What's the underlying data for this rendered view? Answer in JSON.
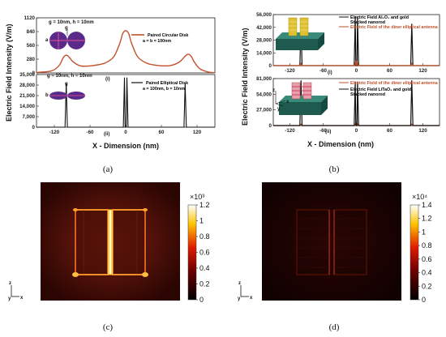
{
  "captions": {
    "a": "(a)",
    "b": "(b)",
    "c": "(c)",
    "d": "(d)"
  },
  "colors": {
    "circular": "#c0502a",
    "elliptical": "#111111",
    "al2o3": "#111111",
    "diner": "#c0502a",
    "litao3": "#111111"
  },
  "chart_data": [
    {
      "type": "line",
      "panel": "a-top",
      "xlabel": "X - Dimension (nm)",
      "ylabel": "Electric Field Intensity (V/m)",
      "xlim": [
        -150,
        150
      ],
      "ylim": [
        0,
        1120
      ],
      "y_ticks": [
        "0",
        "280",
        "560",
        "840",
        "1120"
      ],
      "annotation": "g = 10nm, h = 10nm",
      "series": [
        {
          "name": "Paired Circular Disk\na = b = 100nm",
          "x": [
            -150,
            -125,
            -112,
            -105,
            -100,
            -95,
            -88,
            -75,
            -55,
            -35,
            -20,
            -10,
            -5,
            0,
            5,
            10,
            20,
            35,
            55,
            75,
            90,
            100,
            105,
            110,
            115,
            125,
            140,
            150
          ],
          "values": [
            10,
            40,
            150,
            310,
            360,
            320,
            220,
            140,
            150,
            200,
            330,
            600,
            800,
            860,
            800,
            600,
            330,
            200,
            150,
            150,
            220,
            340,
            380,
            340,
            230,
            80,
            15,
            5
          ]
        }
      ]
    },
    {
      "type": "line",
      "panel": "a-bottom",
      "xlabel": "X - Dimension (nm)",
      "xlim": [
        -150,
        150
      ],
      "ylim": [
        0,
        35000
      ],
      "x_ticks": [
        "-120",
        "-60",
        "0",
        "60",
        "120"
      ],
      "y_ticks": [
        "0",
        "7,000",
        "14,000",
        "21,000",
        "28,000",
        "35,000"
      ],
      "annotation": "g = 10nm, h = 10nm",
      "markers": [
        "(i)",
        "(ii)"
      ],
      "series": [
        {
          "name": "Paired Elliptical Disk\na = 100nm, b = 10nm",
          "x": [
            -150,
            -102,
            -100,
            -98,
            -4,
            -2,
            -1,
            0,
            1,
            2,
            4,
            98,
            100,
            102,
            150
          ],
          "values": [
            0,
            0,
            29000,
            0,
            0,
            33000,
            0,
            0,
            0,
            33000,
            0,
            0,
            29000,
            0,
            0
          ]
        }
      ]
    },
    {
      "type": "line",
      "panel": "b-top",
      "xlabel": "X - Dimension (nm)",
      "ylabel": "Electric Field Intensity (V/m)",
      "xlim": [
        -150,
        150
      ],
      "ylim": [
        0,
        56000
      ],
      "y_ticks": [
        "0",
        "14,000",
        "28,000",
        "42,000",
        "56,000"
      ],
      "marker": "(i)",
      "series": [
        {
          "name": "Electric Field Al₂O₃ and gold Stacked nanorod",
          "x": [
            -150,
            -102,
            -100,
            -98,
            -4,
            -2,
            -1,
            0,
            1,
            2,
            4,
            98,
            100,
            102,
            150
          ],
          "values": [
            0,
            0,
            46000,
            0,
            0,
            54000,
            0,
            0,
            0,
            54000,
            0,
            0,
            46000,
            0,
            0
          ]
        },
        {
          "name": "Electric Field of the diner elliptical antenna",
          "x": [
            -150,
            -102,
            -100,
            -98,
            -3,
            -1,
            0,
            1,
            3,
            98,
            100,
            102,
            150
          ],
          "values": [
            0,
            0,
            2500,
            0,
            0,
            5200,
            0,
            5200,
            0,
            0,
            2500,
            0,
            0
          ]
        }
      ]
    },
    {
      "type": "line",
      "panel": "b-bottom",
      "xlabel": "X - Dimension (nm)",
      "xlim": [
        -150,
        150
      ],
      "ylim": [
        0,
        81000
      ],
      "x_ticks": [
        "-120",
        "-60",
        "0",
        "60",
        "120"
      ],
      "y_ticks": [
        "0",
        "27,000",
        "54,000",
        "81,000"
      ],
      "marker": "(ii)",
      "series": [
        {
          "name": "Electric Field of the diner elliptical antenna",
          "x": [
            -150,
            -102,
            -100,
            -98,
            -3,
            -1,
            0,
            1,
            3,
            98,
            100,
            102,
            150
          ],
          "values": [
            0,
            0,
            2500,
            0,
            0,
            4500,
            0,
            4500,
            0,
            0,
            2500,
            0,
            0
          ]
        },
        {
          "name": "Electric Field LiTaO₃ and gold Stacked nanorod",
          "x": [
            -150,
            -102,
            -100,
            -98,
            -4,
            -2,
            -1,
            0,
            1,
            2,
            4,
            98,
            100,
            102,
            150
          ],
          "values": [
            0,
            0,
            78000,
            0,
            0,
            76000,
            0,
            0,
            0,
            76000,
            0,
            0,
            78000,
            0,
            0
          ]
        }
      ]
    },
    {
      "type": "heatmap",
      "panel": "c",
      "colorbar_title": "×10³",
      "colorbar_ticks": [
        "0",
        "0.2",
        "0.4",
        "0.6",
        "0.8",
        "1",
        "1.2"
      ],
      "range": [
        0,
        1.2
      ],
      "axes": {
        "z": "z",
        "y": "y",
        "x": "x"
      }
    },
    {
      "type": "heatmap",
      "panel": "d",
      "colorbar_title": "×10⁴",
      "colorbar_ticks": [
        "0",
        "0.2",
        "0.4",
        "0.6",
        "0.8",
        "1",
        "1.2",
        "1.4"
      ],
      "range": [
        0,
        1.4
      ],
      "axes": {
        "z": "z",
        "y": "y",
        "x": "x"
      }
    }
  ]
}
